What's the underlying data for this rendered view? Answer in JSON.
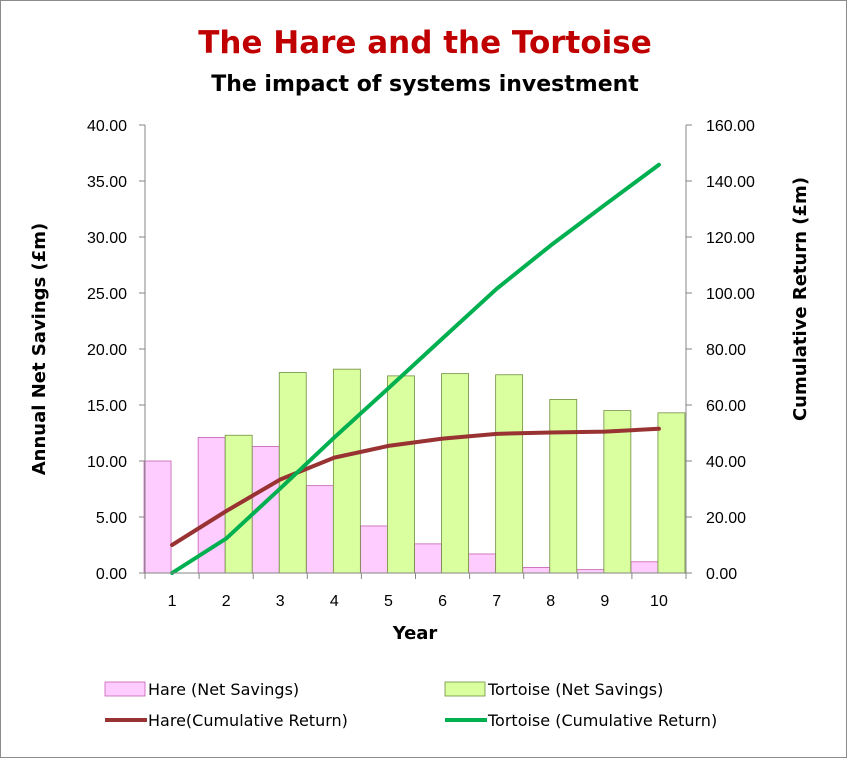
{
  "chart_data": {
    "type": "bar",
    "title": "The Hare and the Tortoise",
    "subtitle": "The impact of systems investment",
    "xlabel": "Year",
    "ylabel": "Annual  Net Savings (£m)",
    "y2label": "Cumulative Return (£m)",
    "categories": [
      "1",
      "2",
      "3",
      "4",
      "5",
      "6",
      "7",
      "8",
      "9",
      "10"
    ],
    "ylim": [
      0,
      40
    ],
    "y2lim": [
      0,
      160
    ],
    "yticks": [
      "0.00",
      "5.00",
      "10.00",
      "15.00",
      "20.00",
      "25.00",
      "30.00",
      "35.00",
      "40.00"
    ],
    "y2ticks": [
      "0.00",
      "20.00",
      "40.00",
      "60.00",
      "80.00",
      "100.00",
      "120.00",
      "140.00",
      "160.00"
    ],
    "bar_series": [
      {
        "name": "Hare (Net Savings)",
        "color": "#ffccff",
        "stroke": "#c55fb5",
        "values": [
          10.0,
          12.1,
          11.3,
          7.8,
          4.2,
          2.6,
          1.7,
          0.5,
          0.3,
          1.0
        ]
      },
      {
        "name": "Tortoise (Net Savings)",
        "color": "#d9ff9e",
        "stroke": "#6f8f3f",
        "values": [
          0.0,
          12.3,
          17.9,
          18.2,
          17.6,
          17.8,
          17.7,
          15.5,
          14.5,
          14.3
        ]
      }
    ],
    "line_series": [
      {
        "name": "Hare(Cumulative Return)",
        "color": "#993333",
        "axis": "right",
        "values": [
          10.0,
          22.1,
          33.4,
          41.2,
          45.4,
          48.0,
          49.7,
          50.2,
          50.5,
          51.5
        ]
      },
      {
        "name": "Tortoise (Cumulative Return)",
        "color": "#00b050",
        "axis": "right",
        "values": [
          0.0,
          12.3,
          30.2,
          48.4,
          66.0,
          83.8,
          101.5,
          117.0,
          131.5,
          145.8
        ]
      }
    ],
    "grid": false,
    "legend_position": "bottom",
    "title_color": "#c00000"
  }
}
